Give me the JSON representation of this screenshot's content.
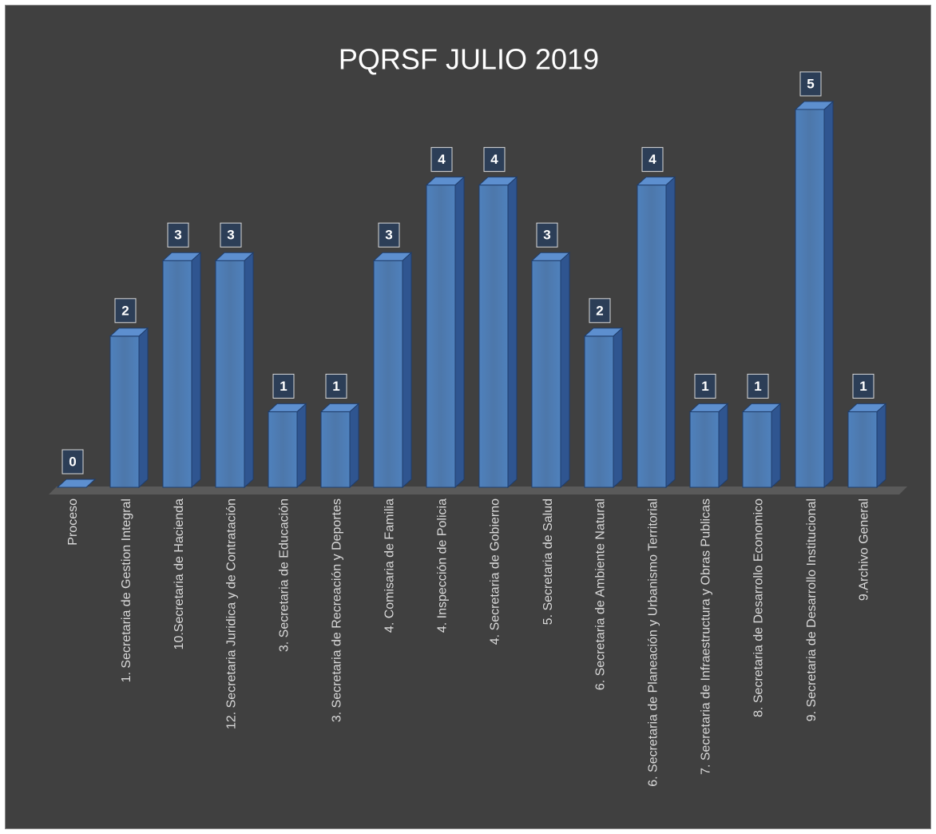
{
  "chart_data": {
    "type": "bar",
    "title": "PQRSF  JULIO 2019",
    "categories": [
      "Proceso",
      "1. Secretaria de Gestion Integral",
      "10.Secretaria de Hacienda",
      "12. Secretaria Juridica y de Contratación",
      "3. Secretaria de Educación",
      "3. Secretaria de Recreación y Deportes",
      "4. Comisaria de Familia",
      "4. Inspección de Policia",
      "4. Secretaria de Gobierno",
      "5. Secretaria de Salud",
      "6. Secretaria de Ambiente Natural",
      "6. Secretaria de Planeación y Urbanismo Territorial",
      "7. Secretaria de Infraestructura y Obras Publicas",
      "8. Secretaria de Desarrollo Economico",
      "9. Secretaria de Desarrollo Institucional",
      "9.Archivo General"
    ],
    "values": [
      0,
      2,
      3,
      3,
      1,
      1,
      3,
      4,
      4,
      3,
      2,
      4,
      1,
      1,
      5,
      1
    ],
    "color": "#4f81bd"
  }
}
